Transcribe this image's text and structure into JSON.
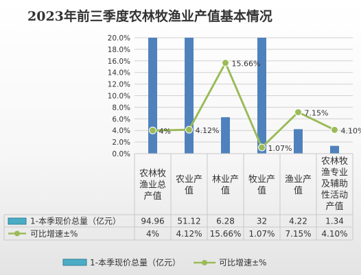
{
  "chart_data": {
    "title": "2023年前三季度农林牧渔业产值基本情况",
    "type": "bar+line",
    "categories": [
      "农林牧渔业总产值",
      "农业产值",
      "林业产值",
      "牧业产值",
      "渔业产值",
      "农林牧渔专业及辅助性活动产值"
    ],
    "category_lines": [
      [
        "农林牧",
        "渔业总",
        "产值"
      ],
      [
        "农业产",
        "值"
      ],
      [
        "林业产",
        "值"
      ],
      [
        "牧业产",
        "值"
      ],
      [
        "渔业产",
        "值"
      ],
      [
        "农林牧",
        "渔专业",
        "及辅助",
        "性活动",
        "产值"
      ]
    ],
    "y_ticks": [
      "0.0%",
      "2.0%",
      "4.0%",
      "6.0%",
      "8.0%",
      "10.0%",
      "12.0%",
      "14.0%",
      "16.0%",
      "18.0%",
      "20.0%"
    ],
    "ylim": [
      0,
      20
    ],
    "grid": true,
    "legend_position": "bottom",
    "bar_series": {
      "name": "1-本季现价总量（亿元）",
      "values": [
        94.96,
        51.12,
        6.28,
        32,
        4.22,
        1.34
      ],
      "value_labels": [
        "94.96",
        "51.12",
        "6.28",
        "32",
        "4.22",
        "1.34"
      ],
      "color": "#4f81bd"
    },
    "line_series": {
      "name": "可比增速±%",
      "values": [
        4.0,
        4.12,
        15.66,
        1.07,
        7.15,
        4.1
      ],
      "value_labels": [
        "4%",
        "4.12%",
        "15.66%",
        "1.07%",
        "7.15%",
        "4.10%"
      ],
      "color": "#9bbb59"
    }
  }
}
